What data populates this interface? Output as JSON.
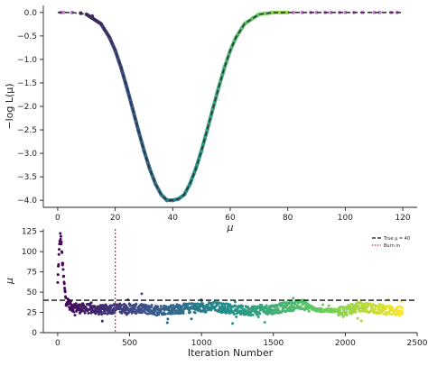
{
  "chart_data": [
    {
      "type": "line",
      "xlabel": "μ",
      "ylabel": "−log L(μ)",
      "xlim": [
        -5,
        125
      ],
      "ylim": [
        -4.15,
        0.15
      ],
      "xticks": [
        "0",
        "20",
        "40",
        "60",
        "80",
        "100",
        "120"
      ],
      "xtick_values": [
        0,
        20,
        40,
        60,
        80,
        100,
        120
      ],
      "yticks": [
        "0.0",
        "−0.5",
        "−1.0",
        "−1.5",
        "−2.0",
        "−2.5",
        "−3.0",
        "−3.5",
        "−4.0"
      ],
      "ytick_values": [
        0,
        -0.5,
        -1,
        -1.5,
        -2,
        -2.5,
        -3,
        -3.5,
        -4
      ],
      "grid": false,
      "series": [
        {
          "kind": "dashed-line",
          "color": "#333333",
          "x": [
            0,
            5,
            10,
            15,
            18,
            20,
            22,
            24,
            26,
            28,
            30,
            32,
            34,
            36,
            38,
            40,
            42,
            44,
            46,
            48,
            50,
            52,
            54,
            56,
            58,
            60,
            62,
            65,
            70,
            75,
            80,
            90,
            100,
            110,
            120
          ],
          "y": [
            0.0,
            -0.002,
            -0.04,
            -0.24,
            -0.53,
            -0.81,
            -1.17,
            -1.59,
            -2.04,
            -2.5,
            -2.94,
            -3.33,
            -3.65,
            -3.88,
            -4.0,
            -4.0,
            -3.97,
            -3.88,
            -3.65,
            -3.33,
            -2.94,
            -2.5,
            -2.04,
            -1.59,
            -1.17,
            -0.81,
            -0.53,
            -0.24,
            -0.04,
            -0.002,
            0.0,
            0.0,
            0.0,
            0.0,
            0.0
          ]
        },
        {
          "kind": "samples",
          "colormap": "viridis",
          "outlier_color": "#c07fcf",
          "x": [
            1,
            2,
            5,
            8,
            12,
            15,
            18,
            20,
            22,
            24,
            26,
            28,
            30,
            32,
            34,
            36,
            38,
            40,
            42,
            44,
            46,
            48,
            50,
            52,
            54,
            56,
            58,
            60,
            62,
            64,
            66,
            68,
            70,
            72,
            75,
            78,
            80,
            82,
            85,
            88,
            90,
            93,
            95,
            98,
            100,
            103,
            106,
            110,
            112,
            116,
            118
          ],
          "y": [
            0.0,
            0.0,
            -0.002,
            -0.015,
            -0.08,
            -0.24,
            -0.53,
            -0.81,
            -1.17,
            -1.59,
            -2.04,
            -2.5,
            -2.94,
            -3.33,
            -3.65,
            -3.88,
            -4.0,
            -4.0,
            -3.97,
            -3.88,
            -3.65,
            -3.33,
            -2.94,
            -2.5,
            -2.04,
            -1.59,
            -1.17,
            -0.81,
            -0.53,
            -0.33,
            -0.2,
            -0.11,
            -0.04,
            -0.02,
            -0.005,
            -0.001,
            0.0,
            0.0,
            0.0,
            0.0,
            0.0,
            0.0,
            0.0,
            0.0,
            0.0,
            0.0,
            0.0,
            0.0,
            0.0,
            0.0,
            0.0
          ]
        }
      ]
    },
    {
      "type": "scatter",
      "xlabel": "Iteration Number",
      "ylabel": "μ",
      "xlim": [
        -100,
        2500
      ],
      "ylim": [
        0,
        128
      ],
      "xticks": [
        "0",
        "500",
        "1000",
        "1500",
        "2000",
        "2500"
      ],
      "xtick_values": [
        0,
        500,
        1000,
        1500,
        2000,
        2500
      ],
      "yticks": [
        "0",
        "25",
        "50",
        "75",
        "100",
        "125"
      ],
      "ytick_values": [
        0,
        25,
        50,
        75,
        100,
        125
      ],
      "grid": false,
      "legend_position": "top-right",
      "n_samples": 2400,
      "colormap": "viridis",
      "true_mu": 40,
      "burn_in": 400,
      "series": [
        {
          "name": "True μ = 40",
          "kind": "hline",
          "y": 40,
          "color": "#111111",
          "style": "dashed"
        },
        {
          "name": "Burn in",
          "kind": "vline",
          "x": 400,
          "color": "#d62728",
          "style": "dotted"
        },
        {
          "kind": "scatter",
          "x": [
            0,
            5,
            10,
            15,
            20,
            25,
            30,
            40,
            50,
            60,
            80,
            100,
            150,
            200,
            300,
            400,
            500,
            700,
            900,
            1100,
            1300,
            1500,
            1700,
            1750,
            1800,
            2000,
            2100,
            2200,
            2300,
            2390
          ],
          "y": [
            60,
            85,
            100,
            115,
            120,
            110,
            95,
            70,
            50,
            40,
            35,
            32,
            30,
            30,
            28,
            30,
            30,
            28,
            30,
            32,
            27,
            29,
            35,
            32,
            28,
            27,
            32,
            30,
            28,
            26
          ]
        }
      ]
    }
  ]
}
